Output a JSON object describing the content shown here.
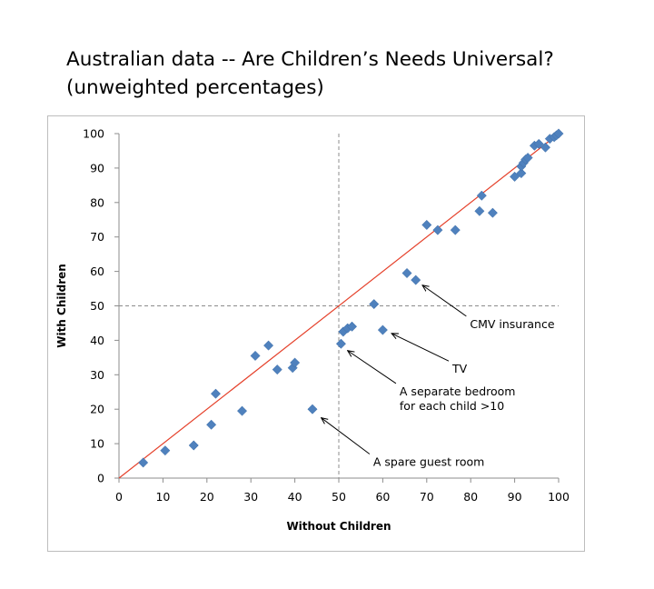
{
  "page": {
    "title_line1": "Australian data -- Are Children’s Needs Universal?",
    "title_line2": "(unweighted percentages)"
  },
  "chart_data": {
    "type": "scatter",
    "xlabel": "Without Children",
    "ylabel": "With Children",
    "xlim": [
      0,
      100
    ],
    "ylim": [
      0,
      100
    ],
    "xticks": [
      0,
      10,
      20,
      30,
      40,
      50,
      60,
      70,
      80,
      90,
      100
    ],
    "yticks": [
      0,
      10,
      20,
      30,
      40,
      50,
      60,
      70,
      80,
      90,
      100
    ],
    "grid": false,
    "legend": "none",
    "point_color": "#4f81bd",
    "diagonal_line": {
      "from": [
        0,
        0
      ],
      "to": [
        100,
        100
      ],
      "color": "#e5402a"
    },
    "reference_lines": {
      "x": 50,
      "y": 50,
      "style": "dashed",
      "color": "#8c8c8c"
    },
    "points": [
      {
        "x": 5.5,
        "y": 4.5
      },
      {
        "x": 10.5,
        "y": 8
      },
      {
        "x": 17,
        "y": 9.5
      },
      {
        "x": 21,
        "y": 15.5
      },
      {
        "x": 22,
        "y": 24.5
      },
      {
        "x": 28,
        "y": 19.5
      },
      {
        "x": 31,
        "y": 35.5
      },
      {
        "x": 34,
        "y": 38.5
      },
      {
        "x": 36,
        "y": 31.5
      },
      {
        "x": 39.5,
        "y": 32
      },
      {
        "x": 40,
        "y": 33.5
      },
      {
        "x": 44,
        "y": 20
      },
      {
        "x": 50.5,
        "y": 39
      },
      {
        "x": 51,
        "y": 42.5
      },
      {
        "x": 52,
        "y": 43.5
      },
      {
        "x": 53,
        "y": 44
      },
      {
        "x": 58,
        "y": 50.5
      },
      {
        "x": 60,
        "y": 43
      },
      {
        "x": 65.5,
        "y": 59.5
      },
      {
        "x": 67.5,
        "y": 57.5
      },
      {
        "x": 70,
        "y": 73.5
      },
      {
        "x": 72.5,
        "y": 72
      },
      {
        "x": 76.5,
        "y": 72
      },
      {
        "x": 82,
        "y": 77.5
      },
      {
        "x": 82.5,
        "y": 82
      },
      {
        "x": 85,
        "y": 77
      },
      {
        "x": 90,
        "y": 87.5
      },
      {
        "x": 91.5,
        "y": 88.5
      },
      {
        "x": 91.5,
        "y": 90.5
      },
      {
        "x": 92,
        "y": 91.5
      },
      {
        "x": 92.5,
        "y": 92.5
      },
      {
        "x": 93,
        "y": 93
      },
      {
        "x": 94.5,
        "y": 96.5
      },
      {
        "x": 95.5,
        "y": 97
      },
      {
        "x": 97,
        "y": 96
      },
      {
        "x": 98,
        "y": 98.5
      },
      {
        "x": 99,
        "y": 99
      },
      {
        "x": 99.5,
        "y": 99.5
      },
      {
        "x": 100,
        "y": 100
      }
    ],
    "annotations": [
      {
        "lines": [
          "CMV insurance"
        ],
        "target": [
          69,
          56
        ],
        "anchor": [
          79,
          47
        ]
      },
      {
        "lines": [
          "TV"
        ],
        "target": [
          62,
          42
        ],
        "anchor": [
          75,
          34
        ]
      },
      {
        "lines": [
          "A separate bedroom",
          "for each child >10"
        ],
        "target": [
          52,
          37
        ],
        "anchor": [
          63,
          27.5
        ]
      },
      {
        "lines": [
          "A spare guest room"
        ],
        "target": [
          46,
          17.5
        ],
        "anchor": [
          57,
          7
        ]
      }
    ]
  }
}
